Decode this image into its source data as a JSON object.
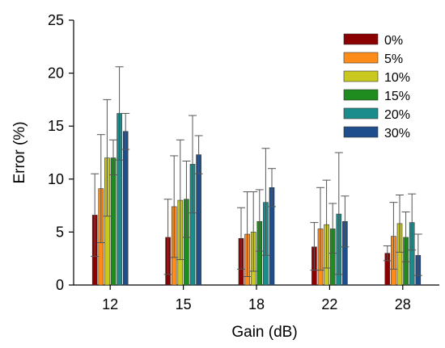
{
  "chart_data": {
    "type": "bar",
    "title": "",
    "xlabel": "Gain (dB)",
    "ylabel": "Error (%)",
    "ylim": [
      0,
      25
    ],
    "yticks": [
      0,
      5,
      10,
      15,
      20,
      25
    ],
    "grid": false,
    "legend": {
      "placement": "top-right"
    },
    "categories": [
      "12",
      "15",
      "18",
      "22",
      "28"
    ],
    "series": [
      {
        "name": "0%",
        "color": "#8B0000",
        "values": [
          6.6,
          4.5,
          4.4,
          3.6,
          3.0
        ],
        "err_upper": [
          10.5,
          8.1,
          7.3,
          5.9,
          3.7
        ],
        "err_lower": [
          2.7,
          1.0,
          1.5,
          1.4,
          2.3
        ]
      },
      {
        "name": "5%",
        "color": "#FF8C1A",
        "values": [
          9.1,
          7.4,
          4.8,
          5.3,
          4.6
        ],
        "err_upper": [
          14.2,
          12.2,
          8.8,
          9.2,
          7.8
        ],
        "err_lower": [
          4.0,
          2.6,
          0.8,
          1.4,
          1.5
        ]
      },
      {
        "name": "10%",
        "color": "#C8C81E",
        "values": [
          12.0,
          8.0,
          5.0,
          5.7,
          5.8
        ],
        "err_upper": [
          17.5,
          13.7,
          8.8,
          9.9,
          8.5
        ],
        "err_lower": [
          6.5,
          2.4,
          1.3,
          1.6,
          3.1
        ]
      },
      {
        "name": "15%",
        "color": "#1E8C1E",
        "values": [
          12.0,
          8.1,
          6.0,
          5.3,
          4.5
        ],
        "err_upper": [
          13.7,
          11.7,
          9.0,
          7.7,
          6.9
        ],
        "err_lower": [
          10.4,
          4.5,
          3.2,
          3.0,
          2.2
        ]
      },
      {
        "name": "20%",
        "color": "#1A8C8C",
        "values": [
          16.2,
          11.4,
          7.8,
          6.7,
          5.9
        ],
        "err_upper": [
          20.6,
          16.0,
          12.9,
          12.5,
          8.6
        ],
        "err_lower": [
          11.8,
          6.8,
          2.8,
          1.0,
          3.3
        ]
      },
      {
        "name": "30%",
        "color": "#1F4E8C",
        "values": [
          14.5,
          12.3,
          9.2,
          6.0,
          2.8
        ],
        "err_upper": [
          16.2,
          14.1,
          11.0,
          8.4,
          4.8
        ],
        "err_lower": [
          12.8,
          10.5,
          7.4,
          3.6,
          0.9
        ]
      }
    ]
  }
}
